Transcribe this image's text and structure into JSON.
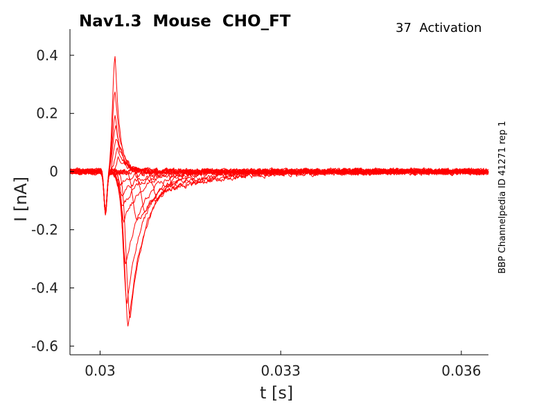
{
  "chart_data": {
    "type": "line",
    "title": "Nav1.3  Mouse  CHO_FT",
    "annotation": "37  Activation",
    "side_label": "BBP Channelpedia ID 41271 rep 1",
    "xlabel": "t [s]",
    "ylabel": "I [nA]",
    "xlim": [
      0.0295,
      0.03645
    ],
    "ylim": [
      -0.63,
      0.49
    ],
    "xticks": [
      0.03,
      0.033,
      0.036
    ],
    "xtick_labels": [
      "0.03",
      "0.033",
      "0.036"
    ],
    "yticks": [
      0.4,
      0.2,
      0,
      -0.2,
      -0.4,
      -0.6
    ],
    "ytick_labels": [
      "0.4",
      "0.2",
      "0",
      "-0.2",
      "-0.4",
      "-0.6"
    ],
    "grid": false,
    "line_color": "#ff0000",
    "artifact": {
      "t": 0.03009,
      "i": -0.14
    },
    "series": [
      {
        "peak_t": 0.03025,
        "peak_i": 0.4
      },
      {
        "peak_t": 0.03025,
        "peak_i": 0.28
      },
      {
        "peak_t": 0.03025,
        "peak_i": 0.19
      },
      {
        "peak_t": 0.03026,
        "peak_i": 0.16
      },
      {
        "peak_t": 0.03027,
        "peak_i": 0.12
      },
      {
        "peak_t": 0.03029,
        "peak_i": 0.08
      },
      {
        "peak_t": 0.03031,
        "peak_i": 0.05
      },
      {
        "peak_t": 0.03034,
        "peak_i": -0.04
      },
      {
        "peak_t": 0.03036,
        "peak_i": -0.08
      },
      {
        "peak_t": 0.03038,
        "peak_i": -0.12
      },
      {
        "peak_t": 0.0304,
        "peak_i": -0.17
      },
      {
        "peak_t": 0.03043,
        "peak_i": -0.32
      },
      {
        "peak_t": 0.03045,
        "peak_i": -0.45
      },
      {
        "peak_t": 0.03047,
        "peak_i": -0.53
      },
      {
        "peak_t": 0.0305,
        "peak_i": -0.5
      },
      {
        "peak_t": 0.03062,
        "peak_i": -0.18
      },
      {
        "peak_t": 0.03075,
        "peak_i": -0.13
      },
      {
        "peak_t": 0.03095,
        "peak_i": -0.09
      },
      {
        "peak_t": 0.03125,
        "peak_i": -0.06
      },
      {
        "peak_t": 0.0316,
        "peak_i": -0.04
      }
    ]
  }
}
